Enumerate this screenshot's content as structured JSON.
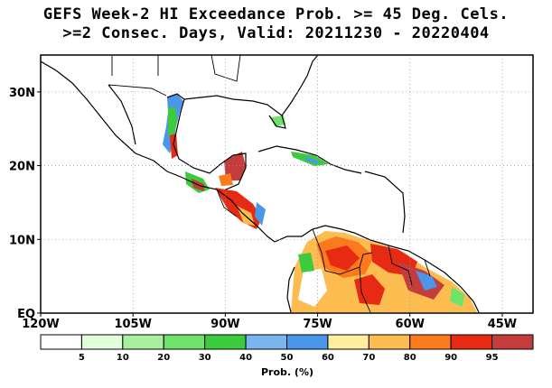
{
  "title_line1": "GEFS Week-2 HI Exceedance Prob. >= 45 Deg. Cels.",
  "title_line2": ">=2 Consec. Days, Valid: 20211230 - 20220404",
  "map": {
    "lon_range": [
      -120,
      -40
    ],
    "lat_range": [
      0,
      35
    ],
    "lon_ticks": [
      {
        "label": "120W",
        "lon": -120
      },
      {
        "label": "105W",
        "lon": -105
      },
      {
        "label": "90W",
        "lon": -90
      },
      {
        "label": "75W",
        "lon": -75
      },
      {
        "label": "60W",
        "lon": -60
      },
      {
        "label": "45W",
        "lon": -45
      }
    ],
    "lat_ticks": [
      {
        "label": "30N",
        "lat": 30
      },
      {
        "label": "20N",
        "lat": 20
      },
      {
        "label": "10N",
        "lat": 10
      },
      {
        "label": "EQ",
        "lat": 0
      }
    ],
    "gridlines": true
  },
  "colorbar": {
    "xlabel": "Prob. (%)",
    "ticks": [
      "5",
      "10",
      "20",
      "30",
      "40",
      "50",
      "60",
      "70",
      "80",
      "90",
      "95"
    ],
    "colors": [
      "#ffffff",
      "#e1ffd9",
      "#aaeea0",
      "#6ee36a",
      "#3ccb3c",
      "#7ab5f0",
      "#4a96ea",
      "#ffee9e",
      "#fdbc50",
      "#fb7a1e",
      "#e62a14",
      "#c43c3c"
    ]
  }
}
